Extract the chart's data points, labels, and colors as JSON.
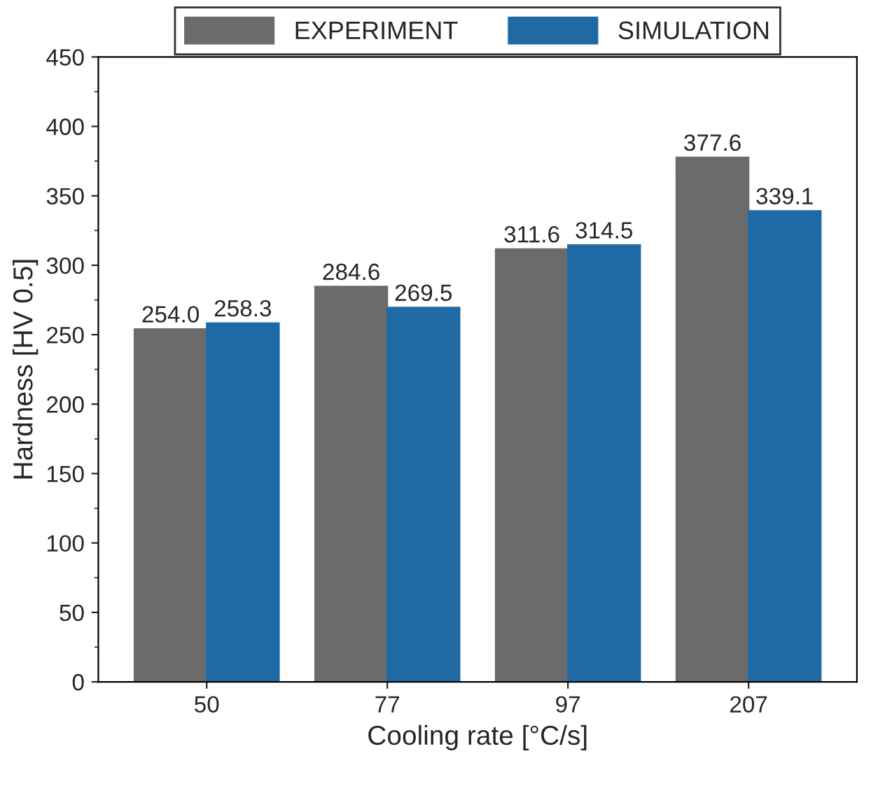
{
  "chart_data": {
    "type": "bar",
    "xlabel": "Cooling rate [°C/s]",
    "ylabel": "Hardness [HV 0.5]",
    "categories": [
      "50",
      "77",
      "97",
      "207"
    ],
    "series": [
      {
        "name": "EXPERIMENT",
        "color": "#6b6b6b",
        "values": [
          254.0,
          284.6,
          311.6,
          377.6
        ],
        "value_labels": [
          "254.0",
          "284.6",
          "311.6",
          "377.6"
        ]
      },
      {
        "name": "SIMULATION",
        "color": "#1f6aa5",
        "values": [
          258.3,
          269.5,
          314.5,
          339.1
        ],
        "value_labels": [
          "258.3",
          "269.5",
          "314.5",
          "339.1"
        ]
      }
    ],
    "ylim": [
      0,
      450
    ],
    "yticks": [
      0,
      50,
      100,
      150,
      200,
      250,
      300,
      350,
      400,
      450
    ],
    "grid": false,
    "legend": "top"
  }
}
